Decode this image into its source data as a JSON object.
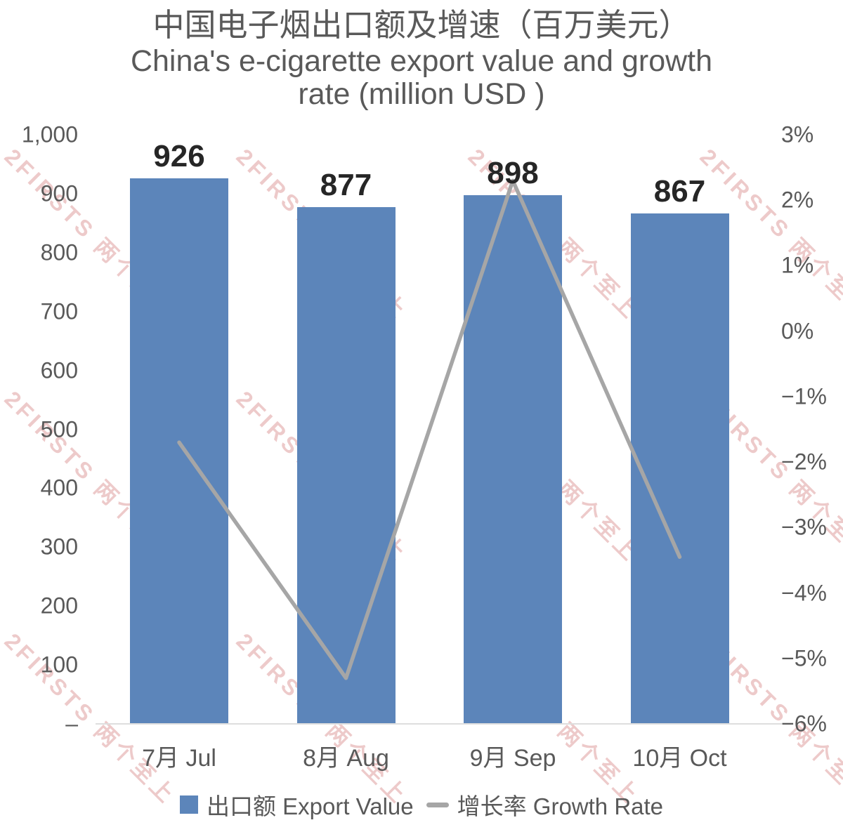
{
  "chart_data": {
    "type": "bar",
    "title": "中国电子烟出口额及增速（百万美元）",
    "subtitle_lines": [
      "China's e-cigarette export value and growth",
      "rate (million USD )"
    ],
    "categories": [
      "7月 Jul",
      "8月 Aug",
      "9月 Sep",
      "10月 Oct"
    ],
    "series": [
      {
        "name": "出口额 Export Value",
        "kind": "bar",
        "axis": "left",
        "color": "#5C85BA",
        "values": [
          926,
          877,
          898,
          867
        ],
        "data_labels": [
          "926",
          "877",
          "898",
          "867"
        ]
      },
      {
        "name": "增长率 Growth Rate",
        "kind": "line",
        "axis": "right",
        "color": "#A6A6A6",
        "values": [
          -1.7,
          -5.3,
          2.3,
          -3.45
        ]
      }
    ],
    "left_axis": {
      "min": 0,
      "max": 1000,
      "tick_step": 100,
      "tick_labels": [
        "1,000",
        "900",
        "800",
        "700",
        "600",
        "500",
        "400",
        "300",
        "200",
        "100",
        "–"
      ]
    },
    "right_axis": {
      "min": -6,
      "max": 3,
      "tick_step": 1,
      "tick_labels": [
        "3%",
        "2%",
        "1%",
        "0%",
        "−1%",
        "−2%",
        "−3%",
        "−4%",
        "−5%",
        "−6%"
      ]
    },
    "grid": false,
    "legend_position": "bottom"
  },
  "watermark": {
    "text": "2FIRSTS 两个至上",
    "color": "#D98C8C"
  },
  "colors": {
    "background": "#FFFFFF",
    "bar": "#5C85BA",
    "line": "#A6A6A6",
    "title_text": "#595959",
    "axis_text": "#595959",
    "data_label": "#262626",
    "baseline": "#DEDEDE"
  }
}
